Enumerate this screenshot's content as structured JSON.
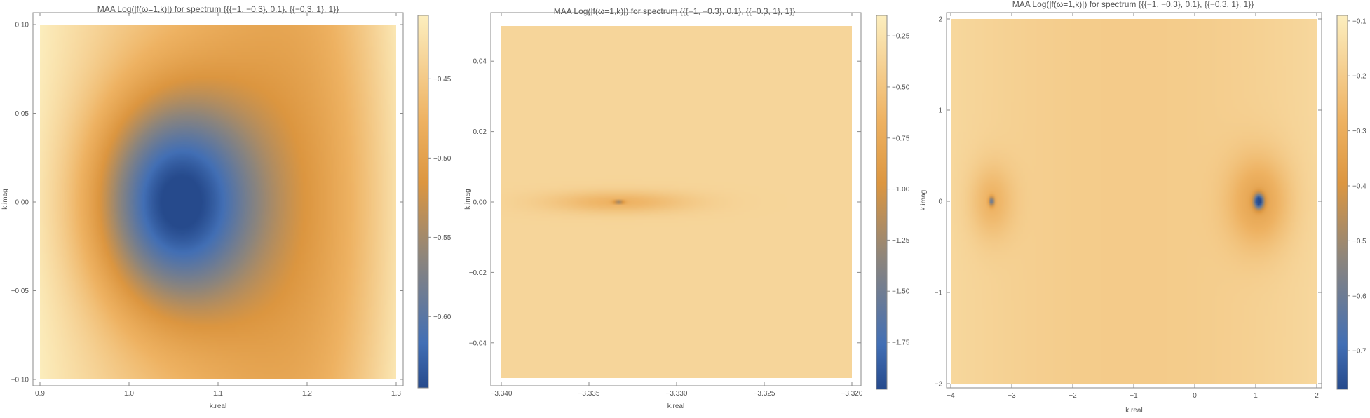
{
  "chart_data": [
    {
      "type": "heatmap",
      "title": "MAA Log(|f(ω=1,k)|) for spectrum {{{−1, −0.3}, 0.1}, {{−0.3, 1}, 1}}",
      "xlabel": "k.real",
      "ylabel": "k.imag",
      "xlim": [
        0.9,
        1.3
      ],
      "ylim": [
        -0.1,
        0.1
      ],
      "x_ticks": [
        0.9,
        1.0,
        1.1,
        1.2,
        1.3
      ],
      "x_tick_labels": [
        "0.9",
        "1.0",
        "1.1",
        "1.2",
        "1.3"
      ],
      "y_ticks": [
        -0.1,
        -0.05,
        0.0,
        0.05,
        0.1
      ],
      "y_tick_labels": [
        "−0.10",
        "−0.05",
        "0.00",
        "0.05",
        "0.10"
      ],
      "colorbar": {
        "range": [
          -0.645,
          -0.41
        ],
        "ticks": [
          -0.6,
          -0.55,
          -0.5,
          -0.45
        ],
        "tick_labels": [
          "−0.60",
          "−0.55",
          "−0.50",
          "−0.45"
        ]
      },
      "field": {
        "base": -0.45,
        "features": [
          {
            "kind": "well",
            "x": 1.05,
            "y": 0.0,
            "depth": 0.19,
            "sx": 0.09,
            "sy": 0.06
          },
          {
            "kind": "ridge",
            "x": 1.2,
            "y": 0.0,
            "depth": 0.07,
            "sx": 0.12,
            "sy": 0.2
          }
        ]
      }
    },
    {
      "type": "heatmap",
      "title": "MAA Log(|f(ω=1,k)|) for spectrum {{{−1, −0.3}, 0.1}, {{−0.3, 1}, 1}}",
      "xlabel": "k.real",
      "ylabel": "k.imag",
      "xlim": [
        -3.34,
        -3.32
      ],
      "ylim": [
        -0.05,
        0.05
      ],
      "x_ticks": [
        -3.34,
        -3.335,
        -3.33,
        -3.325,
        -3.32
      ],
      "x_tick_labels": [
        "−3.340",
        "−3.335",
        "−3.330",
        "−3.325",
        "−3.320"
      ],
      "y_ticks": [
        -0.04,
        -0.02,
        0.0,
        0.02,
        0.04
      ],
      "y_tick_labels": [
        "−0.04",
        "−0.02",
        "0.00",
        "0.02",
        "0.04"
      ],
      "colorbar": {
        "range": [
          -1.98,
          -0.15
        ],
        "ticks": [
          -1.75,
          -1.5,
          -1.25,
          -1.0,
          -0.75,
          -0.5,
          -0.25
        ],
        "tick_labels": [
          "−1.75",
          "−1.50",
          "−1.25",
          "−1.00",
          "−0.75",
          "−0.50",
          "−0.25"
        ]
      },
      "field": {
        "base": -0.36,
        "features": [
          {
            "kind": "well",
            "x": -3.3333,
            "y": 0.0,
            "depth": 1.6,
            "sx": 0.0003,
            "sy": 0.0003
          },
          {
            "kind": "well",
            "x": -3.3333,
            "y": 0.0,
            "depth": 0.3,
            "sx": 0.004,
            "sy": 0.003
          }
        ]
      }
    },
    {
      "type": "heatmap",
      "title": "MAA Log(|f(ω=1,k)|) for spectrum {{{−1, −0.3}, 0.1}, {{−0.3, 1}, 1}}",
      "xlabel": "k.real",
      "ylabel": "k.imag",
      "xlim": [
        -4,
        2
      ],
      "ylim": [
        -2,
        2
      ],
      "x_ticks": [
        -4,
        -3,
        -2,
        -1,
        0,
        1,
        2
      ],
      "x_tick_labels": [
        "−4",
        "−3",
        "−2",
        "−1",
        "0",
        "1",
        "2"
      ],
      "y_ticks": [
        -2,
        -1,
        0,
        1,
        2
      ],
      "y_tick_labels": [
        "−2",
        "−1",
        "0",
        "1",
        "2"
      ],
      "colorbar": {
        "range": [
          -0.77,
          -0.09
        ],
        "ticks": [
          -0.7,
          -0.6,
          -0.5,
          -0.4,
          -0.3,
          -0.2,
          -0.1
        ],
        "tick_labels": [
          "−0.7",
          "−0.6",
          "−0.5",
          "−0.4",
          "−0.3",
          "−0.2",
          "−0.1"
        ]
      },
      "field": {
        "base": -0.2,
        "features": [
          {
            "kind": "well",
            "x": 1.05,
            "y": 0.0,
            "depth": 0.55,
            "sx": 0.08,
            "sy": 0.08
          },
          {
            "kind": "well",
            "x": 1.05,
            "y": 0.0,
            "depth": 0.15,
            "sx": 0.5,
            "sy": 0.5
          },
          {
            "kind": "well",
            "x": -3.33,
            "y": 0.0,
            "depth": 0.4,
            "sx": 0.04,
            "sy": 0.05
          },
          {
            "kind": "well",
            "x": -3.33,
            "y": 0.0,
            "depth": 0.1,
            "sx": 0.35,
            "sy": 0.4
          }
        ]
      }
    }
  ]
}
